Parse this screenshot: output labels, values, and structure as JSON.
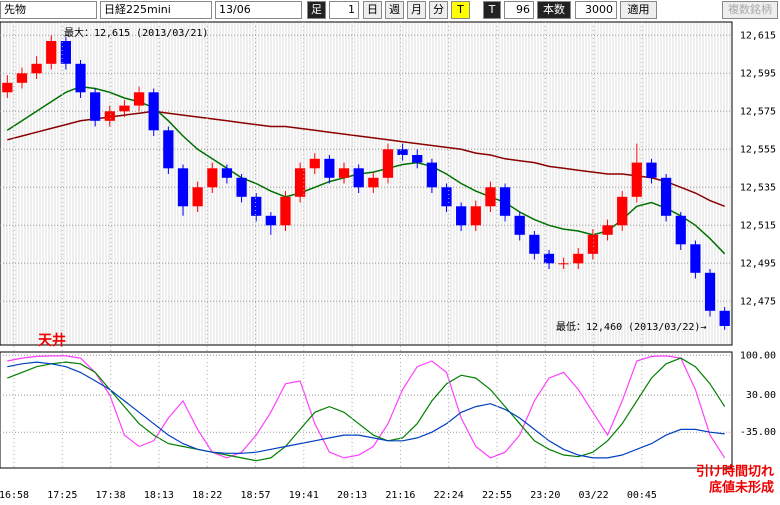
{
  "toolbar": {
    "symbol_type": "先物",
    "symbol": "日経225mini",
    "contract": "13/06",
    "bar_label": "足",
    "bar_size": "1",
    "buttons": [
      "日",
      "週",
      "月",
      "分",
      "T"
    ],
    "t_label": "T",
    "count_value": "96",
    "count_label": "本数",
    "max_count": "3000",
    "apply": "適用",
    "multi": "複数銘柄"
  },
  "chart_data": [
    {
      "type": "candlestick",
      "up_color": "#ff0000",
      "down_color": "#0000ff",
      "open": [
        12585,
        12590,
        12595,
        12600,
        12612,
        12600,
        12585,
        12570,
        12575,
        12578,
        12585,
        12565,
        12545,
        12525,
        12535,
        12545,
        12540,
        12530,
        12520,
        12515,
        12530,
        12545,
        12550,
        12540,
        12545,
        12535,
        12540,
        12555,
        12552,
        12548,
        12535,
        12525,
        12515,
        12525,
        12535,
        12520,
        12510,
        12500,
        12495,
        12495,
        12500,
        12510,
        12515,
        12530,
        12548,
        12540,
        12520,
        12505,
        12490,
        12470
      ],
      "high": [
        12594,
        12598,
        12604,
        12615,
        12614,
        12602,
        12587,
        12578,
        12581,
        12588,
        12587,
        12567,
        12547,
        12538,
        12548,
        12547,
        12542,
        12532,
        12522,
        12533,
        12548,
        12553,
        12552,
        12548,
        12547,
        12543,
        12558,
        12558,
        12555,
        12550,
        12537,
        12527,
        12528,
        12538,
        12537,
        12522,
        12512,
        12502,
        12498,
        12503,
        12513,
        12518,
        12533,
        12558,
        12550,
        12542,
        12522,
        12507,
        12492,
        12472
      ],
      "low": [
        12582,
        12587,
        12592,
        12597,
        12597,
        12582,
        12567,
        12567,
        12572,
        12575,
        12562,
        12542,
        12520,
        12522,
        12532,
        12537,
        12527,
        12517,
        12510,
        12512,
        12527,
        12542,
        12537,
        12537,
        12532,
        12532,
        12537,
        12549,
        12545,
        12532,
        12522,
        12512,
        12512,
        12522,
        12517,
        12507,
        12497,
        12492,
        12492,
        12492,
        12497,
        12507,
        12512,
        12527,
        12537,
        12517,
        12502,
        12487,
        12467,
        12460
      ],
      "close": [
        12590,
        12595,
        12600,
        12612,
        12600,
        12585,
        12570,
        12575,
        12578,
        12585,
        12565,
        12545,
        12525,
        12535,
        12545,
        12540,
        12530,
        12520,
        12515,
        12530,
        12545,
        12550,
        12540,
        12545,
        12535,
        12540,
        12555,
        12552,
        12548,
        12535,
        12525,
        12515,
        12525,
        12535,
        12520,
        12510,
        12500,
        12495,
        12495,
        12500,
        12510,
        12515,
        12530,
        12548,
        12540,
        12520,
        12505,
        12490,
        12470,
        12462
      ],
      "series": [
        {
          "color": "#8b0000",
          "values": [
            12560,
            12562,
            12564,
            12566,
            12568,
            12570,
            12571,
            12572,
            12573,
            12574,
            12575,
            12574,
            12573,
            12572,
            12571,
            12570,
            12569,
            12568,
            12567,
            12567,
            12566,
            12565,
            12564,
            12563,
            12562,
            12561,
            12560,
            12559,
            12558,
            12557,
            12556,
            12555,
            12553,
            12552,
            12550,
            12549,
            12548,
            12546,
            12545,
            12544,
            12543,
            12542,
            12542,
            12541,
            12540,
            12538,
            12535,
            12532,
            12528,
            12525
          ]
        },
        {
          "color": "#007000",
          "values": [
            12565,
            12570,
            12575,
            12580,
            12585,
            12588,
            12587,
            12585,
            12582,
            12580,
            12577,
            12570,
            12562,
            12555,
            12550,
            12545,
            12540,
            12537,
            12533,
            12530,
            12532,
            12535,
            12538,
            12540,
            12542,
            12543,
            12545,
            12547,
            12548,
            12546,
            12542,
            12537,
            12533,
            12530,
            12527,
            12522,
            12518,
            12515,
            12513,
            12512,
            12510,
            12512,
            12518,
            12525,
            12527,
            12524,
            12520,
            12515,
            12508,
            12500
          ]
        }
      ],
      "ylim": [
        12452,
        12622
      ],
      "yticks": [
        {
          "value": 12615,
          "label": "12,615"
        },
        {
          "value": 12595,
          "label": "12,595"
        },
        {
          "value": 12575,
          "label": "12,575"
        },
        {
          "value": 12555,
          "label": "12,555"
        },
        {
          "value": 12535,
          "label": "12,535"
        },
        {
          "value": 12515,
          "label": "12,515"
        },
        {
          "value": 12495,
          "label": "12,495"
        },
        {
          "value": 12475,
          "label": "12,475"
        }
      ],
      "grid": true,
      "annotations": {
        "max": "最大：12,615 (2013/03/21)",
        "min": "最低：12,460 (2013/03/22)→",
        "top_mark": "天井"
      }
    },
    {
      "type": "line",
      "series": [
        {
          "color": "#ff40ff",
          "values": [
            90,
            95,
            98,
            99,
            99,
            95,
            70,
            30,
            -40,
            -60,
            -50,
            -10,
            20,
            -30,
            -70,
            -80,
            -70,
            -40,
            0,
            50,
            55,
            -20,
            -70,
            -80,
            -75,
            -60,
            -20,
            40,
            80,
            90,
            70,
            -10,
            -60,
            -80,
            -70,
            -40,
            20,
            60,
            70,
            40,
            0,
            -40,
            20,
            90,
            98,
            99,
            95,
            40,
            -40,
            -80
          ]
        },
        {
          "color": "#008000",
          "values": [
            60,
            70,
            80,
            85,
            88,
            85,
            70,
            40,
            10,
            -20,
            -40,
            -55,
            -60,
            -65,
            -70,
            -75,
            -80,
            -85,
            -80,
            -60,
            -30,
            0,
            10,
            0,
            -20,
            -40,
            -50,
            -45,
            -20,
            20,
            50,
            65,
            60,
            40,
            10,
            -20,
            -50,
            -65,
            -75,
            -78,
            -70,
            -50,
            -20,
            20,
            60,
            85,
            95,
            80,
            50,
            10
          ]
        },
        {
          "color": "#0040c0",
          "values": [
            80,
            85,
            88,
            85,
            80,
            70,
            55,
            40,
            20,
            0,
            -20,
            -40,
            -55,
            -65,
            -70,
            -72,
            -72,
            -70,
            -65,
            -60,
            -55,
            -50,
            -45,
            -40,
            -40,
            -45,
            -50,
            -50,
            -45,
            -35,
            -20,
            0,
            10,
            15,
            5,
            -10,
            -30,
            -50,
            -65,
            -75,
            -80,
            -80,
            -75,
            -65,
            -55,
            -40,
            -30,
            -30,
            -35,
            -38
          ]
        }
      ],
      "ylim": [
        -96,
        104
      ],
      "yticks": [
        {
          "value": 100,
          "label": "100.00"
        },
        {
          "value": 30,
          "label": "30.00"
        },
        {
          "value": -35,
          "label": "-35.00"
        }
      ],
      "x_tick_labels": [
        "16:58",
        "17:25",
        "17:38",
        "18:13",
        "18:22",
        "18:57",
        "19:41",
        "20:13",
        "21:16",
        "22:24",
        "22:55",
        "23:20",
        "03/22",
        "00:45"
      ],
      "annotations": [
        "引け時間切れ",
        "底値未形成"
      ]
    }
  ]
}
